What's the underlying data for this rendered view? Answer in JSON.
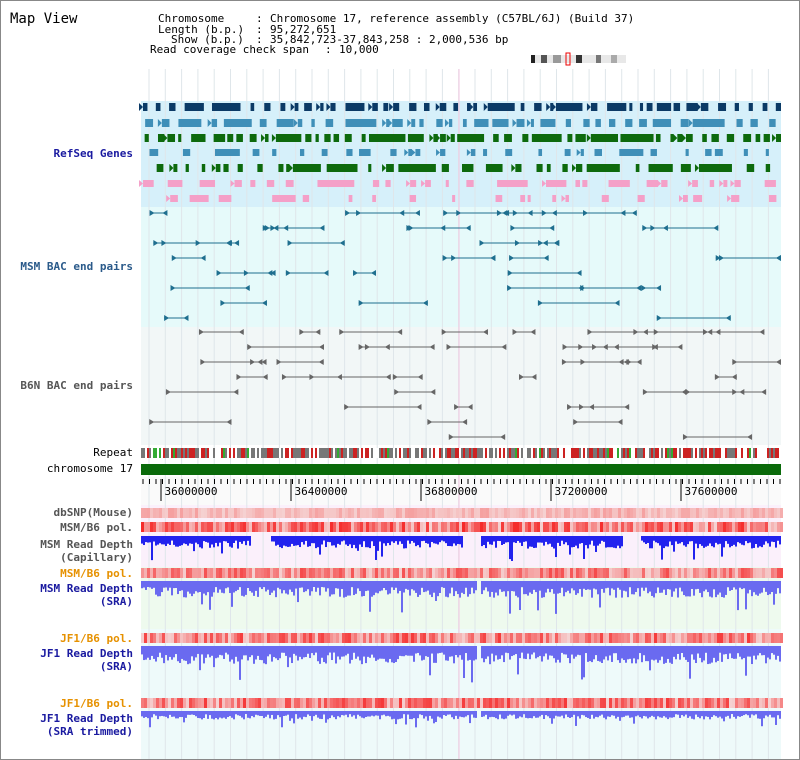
{
  "header": {
    "title": "Map View",
    "chromosome_key": "Chromosome",
    "chromosome_value": "Chromosome 17, reference assembly (C57BL/6J) (Build 37)",
    "length_key": "Length (b.p.)",
    "length_value": "95,272,651",
    "show_key": "Show (b.p.)",
    "show_value": "35,842,723-37,843,258 : 2,000,536 bp",
    "coverage_key": "Read coverage check span",
    "coverage_value": "10,000"
  },
  "tracks": {
    "refseq": "RefSeq Genes",
    "msm_bac": "MSM BAC end pairs",
    "b6n_bac": "B6N BAC end pairs",
    "repeat": "Repeat",
    "chromosome": "chromosome 17",
    "dbsnp": "dbSNP(Mouse)",
    "msm_b6_pol": "MSM/B6 pol.",
    "msm_read_depth_cap_1": "MSM Read Depth",
    "msm_read_depth_cap_2": "(Capillary)",
    "msm_b6_pol_sra": "MSM/B6 pol.",
    "msm_read_depth_sra_1": "MSM Read Depth",
    "msm_read_depth_sra_2": "(SRA)",
    "jf1_b6_pol": "JF1/B6 pol.",
    "jf1_read_depth_1": "JF1 Read Depth",
    "jf1_read_depth_2": "(SRA)",
    "jf1_b6_pol_trim": "JF1/B6 pol.",
    "jf1_trim_1": "JF1 Read Depth",
    "jf1_trim_2": "(SRA trimmed)"
  },
  "ruler": {
    "ticks": [
      "36000000",
      "36400000",
      "36800000",
      "37200000",
      "37600000"
    ]
  },
  "colors": {
    "refseq_bg": "#d6f0fa",
    "bac_bg": "#e6fafa",
    "b6n_bg": "#f2f7f7",
    "navy_gene": "#0b3a66",
    "blue_gene": "#3f8fb8",
    "green_gene": "#0d6a0d",
    "pink_gene": "#f4a0c8",
    "teal_line": "#1f6f8f",
    "gray_line": "#666666",
    "chromosome": "#0a6a0a",
    "depth_blue": "#2222ee",
    "depth_light": "#6a6af0",
    "pol_red": "#e83030"
  }
}
